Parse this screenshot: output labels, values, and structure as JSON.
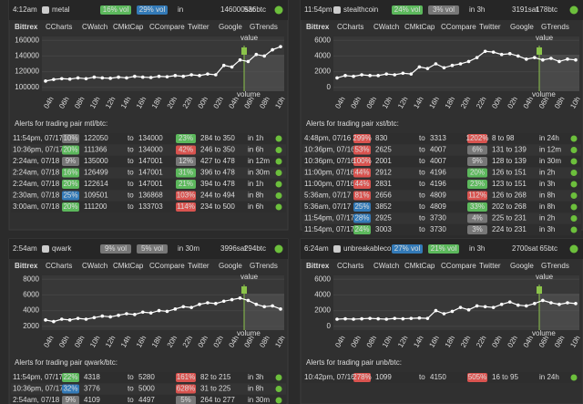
{
  "in_label": "in",
  "alert_to_prefix": "to",
  "chart_value_label": "value",
  "chart_volume_label": "volume",
  "tabs": [
    "Bittrex",
    "CCharts",
    "CWatch",
    "CMktCap",
    "CCompare",
    "Twitter",
    "Google",
    "GTrends"
  ],
  "panels": [
    {
      "header": {
        "time": "4:12am",
        "name": "metal",
        "vol1": "16% vol",
        "vol1_color": "#5cb85c",
        "vol2": "29% vol",
        "vol2_color": "#337ab7",
        "eta": "",
        "price": "146000sat",
        "volume": "536btc"
      },
      "chart": {
        "ylim": [
          95000,
          165000
        ],
        "yticks": [
          100000,
          120000,
          140000,
          160000
        ],
        "xticks": [
          "04h",
          "06h",
          "08h",
          "10h",
          "12h",
          "14h",
          "16h",
          "18h",
          "20h",
          "22h",
          "00h",
          "02h",
          "04h",
          "06h",
          "08h",
          "10h"
        ],
        "values": [
          108000,
          110000,
          111000,
          110500,
          112000,
          111000,
          113000,
          112000,
          111500,
          113000,
          112000,
          114000,
          113000,
          112500,
          114000,
          113500,
          115000,
          114000,
          116000,
          115000,
          117000,
          116000,
          128000,
          126000,
          135000,
          133000,
          142000,
          140000,
          148000,
          152000
        ]
      },
      "alerts_title": "Alerts for trading pair mtl/btc:",
      "alerts": [
        {
          "time": "11:54pm, 07/17",
          "change": "10%",
          "change_color": "#777",
          "from": "122050",
          "to": "134000",
          "vchange": "23%",
          "vchange_color": "#5cb85c",
          "range": "284 to 350",
          "when": "in 1h"
        },
        {
          "time": "10:36pm, 07/17",
          "change": "20%",
          "change_color": "#5cb85c",
          "from": "111366",
          "to": "134000",
          "vchange": "42%",
          "vchange_color": "#d9534f",
          "range": "246 to 350",
          "when": "in 6h"
        },
        {
          "time": "2:24am, 07/18",
          "change": "9%",
          "change_color": "#777",
          "from": "135000",
          "to": "147001",
          "vchange": "12%",
          "vchange_color": "#777",
          "range": "427 to 478",
          "when": "in 12m"
        },
        {
          "time": "2:24am, 07/18",
          "change": "16%",
          "change_color": "#5cb85c",
          "from": "126499",
          "to": "147001",
          "vchange": "31%",
          "vchange_color": "#5cb85c",
          "range": "396 to 478",
          "when": "in 30m"
        },
        {
          "time": "2:24am, 07/18",
          "change": "20%",
          "change_color": "#5cb85c",
          "from": "122614",
          "to": "147001",
          "vchange": "21%",
          "vchange_color": "#5cb85c",
          "range": "394 to 478",
          "when": "in 1h"
        },
        {
          "time": "2:30am, 07/18",
          "change": "25%",
          "change_color": "#337ab7",
          "from": "109501",
          "to": "136868",
          "vchange": "103%",
          "vchange_color": "#d9534f",
          "range": "244 to 494",
          "when": "in 8h"
        },
        {
          "time": "3:00am, 07/18",
          "change": "20%",
          "change_color": "#5cb85c",
          "from": "111200",
          "to": "133703",
          "vchange": "114%",
          "vchange_color": "#d9534f",
          "range": "234 to 500",
          "when": "in 6h"
        }
      ]
    },
    {
      "header": {
        "time": "11:54pm",
        "name": "stealthcoin",
        "vol1": "24% vol",
        "vol1_color": "#5cb85c",
        "vol2": "3% vol",
        "vol2_color": "#777",
        "eta": "in 3h",
        "price": "3191sat",
        "volume": "178btc"
      },
      "chart": {
        "ylim": [
          -500,
          6500
        ],
        "yticks": [
          0,
          2000,
          4000,
          6000
        ],
        "xticks": [
          "04h",
          "06h",
          "08h",
          "10h",
          "12h",
          "14h",
          "16h",
          "18h",
          "20h",
          "22h",
          "00h",
          "02h",
          "04h",
          "06h",
          "08h",
          "10h"
        ],
        "values": [
          1200,
          1500,
          1400,
          1600,
          1500,
          1500,
          1700,
          1600,
          1800,
          1700,
          2600,
          2400,
          3000,
          2500,
          2800,
          3000,
          3300,
          3800,
          4600,
          4500,
          4200,
          4300,
          4000,
          3600,
          3800,
          3500,
          3700,
          3300,
          3600,
          3500
        ]
      },
      "alerts_title": "Alerts for trading pair xst/btc:",
      "alerts": [
        {
          "time": "4:48pm, 07/16",
          "change": "299%",
          "change_color": "#d9534f",
          "from": "830",
          "to": "3313",
          "vchange": "1202%",
          "vchange_color": "#d9534f",
          "range": "8 to 98",
          "when": "in 24h"
        },
        {
          "time": "10:36pm, 07/16",
          "change": "53%",
          "change_color": "#d9534f",
          "from": "2625",
          "to": "4007",
          "vchange": "6%",
          "vchange_color": "#777",
          "range": "131 to 139",
          "when": "in 12m"
        },
        {
          "time": "10:36pm, 07/16",
          "change": "100%",
          "change_color": "#d9534f",
          "from": "2001",
          "to": "4007",
          "vchange": "9%",
          "vchange_color": "#777",
          "range": "128 to 139",
          "when": "in 30m"
        },
        {
          "time": "11:00pm, 07/16",
          "change": "44%",
          "change_color": "#d9534f",
          "from": "2912",
          "to": "4196",
          "vchange": "20%",
          "vchange_color": "#5cb85c",
          "range": "126 to 151",
          "when": "in 2h"
        },
        {
          "time": "11:00pm, 07/16",
          "change": "44%",
          "change_color": "#d9534f",
          "from": "2831",
          "to": "4196",
          "vchange": "23%",
          "vchange_color": "#5cb85c",
          "range": "123 to 151",
          "when": "in 3h"
        },
        {
          "time": "5:36am, 07/17",
          "change": "81%",
          "change_color": "#d9534f",
          "from": "2656",
          "to": "4809",
          "vchange": "112%",
          "vchange_color": "#d9534f",
          "range": "126 to 268",
          "when": "in 8h"
        },
        {
          "time": "5:36am, 07/17",
          "change": "25%",
          "change_color": "#337ab7",
          "from": "3852",
          "to": "4809",
          "vchange": "33%",
          "vchange_color": "#5cb85c",
          "range": "202 to 268",
          "when": "in 8h"
        },
        {
          "time": "11:54pm, 07/17",
          "change": "28%",
          "change_color": "#337ab7",
          "from": "2925",
          "to": "3730",
          "vchange": "4%",
          "vchange_color": "#777",
          "range": "225 to 231",
          "when": "in 2h"
        },
        {
          "time": "11:54pm, 07/17",
          "change": "24%",
          "change_color": "#5cb85c",
          "from": "3003",
          "to": "3730",
          "vchange": "3%",
          "vchange_color": "#777",
          "range": "224 to 231",
          "when": "in 3h"
        }
      ]
    },
    {
      "header": {
        "time": "2:54am",
        "name": "qwark",
        "vol1": "9% vol",
        "vol1_color": "#777",
        "vol2": "5% vol",
        "vol2_color": "#777",
        "eta": "in 30m",
        "price": "3996sat",
        "volume": "294btc"
      },
      "chart": {
        "ylim": [
          1500,
          8500
        ],
        "yticks": [
          2000,
          4000,
          6000,
          8000
        ],
        "xticks": [
          "04h",
          "06h",
          "08h",
          "10h",
          "12h",
          "14h",
          "16h",
          "18h",
          "20h",
          "22h",
          "00h",
          "02h",
          "04h",
          "06h",
          "08h",
          "10h"
        ],
        "values": [
          2800,
          2600,
          2900,
          2800,
          3000,
          2900,
          3100,
          3300,
          3200,
          3400,
          3600,
          3500,
          3800,
          3700,
          4000,
          3900,
          4200,
          4500,
          4400,
          4800,
          5000,
          4900,
          5200,
          5400,
          5600,
          5300,
          4800,
          4500,
          4600,
          4200
        ]
      },
      "alerts_title": "Alerts for trading pair qwark/btc:",
      "alerts": [
        {
          "time": "11:54pm, 07/17",
          "change": "22%",
          "change_color": "#5cb85c",
          "from": "4318",
          "to": "5280",
          "vchange": "161%",
          "vchange_color": "#d9534f",
          "range": "82 to 215",
          "when": "in 3h"
        },
        {
          "time": "10:36pm, 07/17",
          "change": "32%",
          "change_color": "#337ab7",
          "from": "3776",
          "to": "5000",
          "vchange": "628%",
          "vchange_color": "#d9534f",
          "range": "31 to 225",
          "when": "in 8h"
        },
        {
          "time": "2:54am, 07/18",
          "change": "9%",
          "change_color": "#777",
          "from": "4109",
          "to": "4497",
          "vchange": "5%",
          "vchange_color": "#777",
          "range": "264 to 277",
          "when": "in 30m"
        }
      ]
    },
    {
      "header": {
        "time": "6:24am",
        "name": "unbreakablecoi",
        "vol1": "27% vol",
        "vol1_color": "#337ab7",
        "vol2": "21% vol",
        "vol2_color": "#5cb85c",
        "eta": "in 3h",
        "price": "2700sat",
        "volume": "65btc"
      },
      "chart": {
        "ylim": [
          -500,
          6500
        ],
        "yticks": [
          0,
          2000,
          4000,
          6000
        ],
        "xticks": [
          "04h",
          "06h",
          "08h",
          "10h",
          "12h",
          "14h",
          "16h",
          "18h",
          "20h",
          "22h",
          "00h",
          "02h",
          "04h",
          "06h",
          "08h",
          "10h"
        ],
        "values": [
          900,
          950,
          900,
          950,
          1000,
          950,
          900,
          1000,
          950,
          1000,
          1050,
          1000,
          2000,
          1600,
          1900,
          2400,
          2100,
          2600,
          2500,
          2400,
          2800,
          3100,
          2700,
          2600,
          2900,
          3300,
          3000,
          2800,
          3000,
          2900
        ]
      },
      "alerts_title": "Alerts for trading pair unb/btc:",
      "alerts": [
        {
          "time": "10:42pm, 07/16",
          "change": "278%",
          "change_color": "#d9534f",
          "from": "1099",
          "to": "4150",
          "vchange": "505%",
          "vchange_color": "#d9534f",
          "range": "16 to 95",
          "when": "in 24h"
        }
      ]
    }
  ]
}
